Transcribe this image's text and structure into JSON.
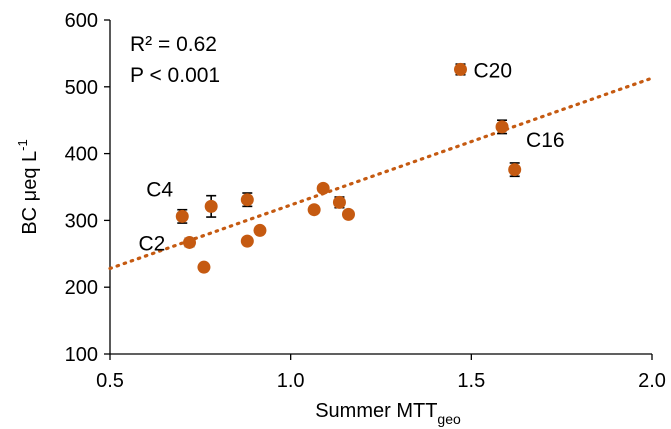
{
  "chart_data": {
    "type": "scatter",
    "xlabel_main": "Summer MTT",
    "xlabel_sub": "geo",
    "ylabel_main": "BC μeq L",
    "ylabel_sup": "-1",
    "xlim": [
      0.5,
      2.0
    ],
    "ylim": [
      100,
      600
    ],
    "xticks": [
      0.5,
      1.0,
      1.5,
      2.0
    ],
    "xtick_labels": [
      "0.5",
      "1.0",
      "1.5",
      "2.0"
    ],
    "yticks": [
      100,
      200,
      300,
      400,
      500,
      600
    ],
    "ytick_labels": [
      "100",
      "200",
      "300",
      "400",
      "500",
      "600"
    ],
    "grid": false,
    "point_color": "#c55a11",
    "trendline_color": "#c55a11",
    "stats": {
      "r2": "R² = 0.62",
      "p": "P < 0.001"
    },
    "trendline": {
      "slope": 190,
      "intercept": 133
    },
    "points": [
      {
        "x": 0.7,
        "y": 306,
        "err": 10
      },
      {
        "x": 0.72,
        "y": 267,
        "err": 6
      },
      {
        "x": 0.76,
        "y": 230,
        "err": 0
      },
      {
        "x": 0.78,
        "y": 321,
        "err": 16
      },
      {
        "x": 0.88,
        "y": 331,
        "err": 10
      },
      {
        "x": 0.88,
        "y": 269,
        "err": 0
      },
      {
        "x": 0.915,
        "y": 285,
        "err": 0
      },
      {
        "x": 1.065,
        "y": 316,
        "err": 0
      },
      {
        "x": 1.09,
        "y": 348,
        "err": 0
      },
      {
        "x": 1.135,
        "y": 327,
        "err": 8
      },
      {
        "x": 1.16,
        "y": 309,
        "err": 0
      },
      {
        "x": 1.47,
        "y": 526,
        "err": 8
      },
      {
        "x": 1.585,
        "y": 440,
        "err": 10
      },
      {
        "x": 1.62,
        "y": 376,
        "err": 10
      }
    ],
    "annotations": [
      {
        "label": "C4",
        "x": 0.7,
        "y": 306,
        "pos": "upper-left"
      },
      {
        "label": "C2",
        "x": 0.72,
        "y": 267,
        "pos": "left"
      },
      {
        "label": "C20",
        "x": 1.47,
        "y": 526,
        "pos": "right"
      },
      {
        "label": "C16",
        "x": 1.585,
        "y": 440,
        "pos": "right-below"
      }
    ]
  }
}
